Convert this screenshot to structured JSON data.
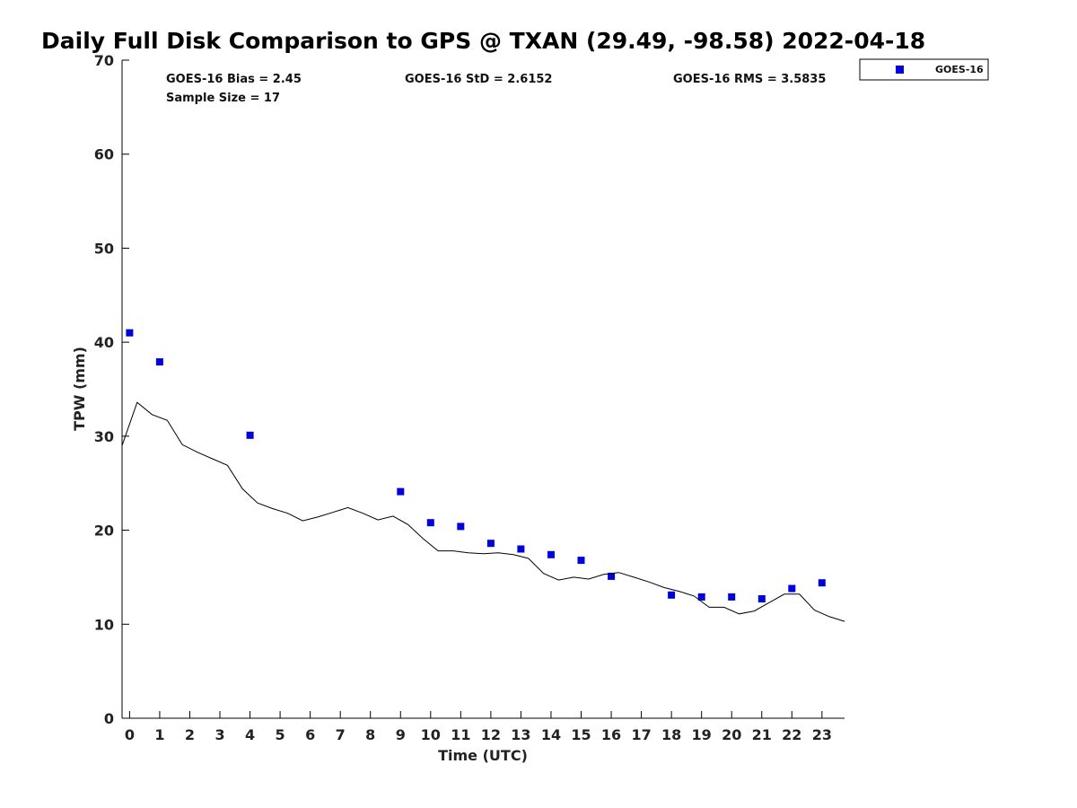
{
  "chart_data": {
    "type": "scatter",
    "title": "Daily Full Disk Comparison to GPS @ TXAN (29.49, -98.58) 2022-04-18",
    "xlabel": "Time (UTC)",
    "ylabel": "TPW (mm)",
    "xlim": [
      -0.25,
      23.75
    ],
    "ylim": [
      0,
      70
    ],
    "x_ticks": [
      0,
      1,
      2,
      3,
      4,
      5,
      6,
      7,
      8,
      9,
      10,
      11,
      12,
      13,
      14,
      15,
      16,
      17,
      18,
      19,
      20,
      21,
      22,
      23
    ],
    "y_ticks": [
      0,
      10,
      20,
      30,
      40,
      50,
      60,
      70
    ],
    "grid": false,
    "legend_position": "top-right-outside",
    "stats": {
      "bias": "GOES-16 Bias = 2.45",
      "sample_size": "Sample Size = 17",
      "std": "GOES-16 StD = 2.6152",
      "rms": "GOES-16 RMS = 3.5835"
    },
    "series": [
      {
        "name": "GOES-16",
        "type": "scatter",
        "marker": "square",
        "color": "#0000dd",
        "x": [
          0,
          1,
          4,
          9,
          10,
          11,
          12,
          13,
          14,
          15,
          16,
          18,
          19,
          20,
          21,
          22,
          23
        ],
        "y": [
          41.0,
          37.9,
          30.1,
          24.1,
          20.8,
          20.4,
          18.6,
          18.0,
          17.4,
          16.8,
          15.1,
          13.1,
          12.9,
          12.9,
          12.7,
          13.8,
          14.4
        ]
      },
      {
        "type": "line",
        "color": "#000000",
        "x": [
          -0.25,
          0.25,
          0.75,
          1.25,
          1.75,
          2.25,
          2.75,
          3.25,
          3.75,
          4.25,
          4.75,
          5.25,
          5.75,
          6.25,
          6.75,
          7.25,
          7.75,
          8.25,
          8.75,
          9.25,
          9.75,
          10.25,
          10.75,
          11.25,
          11.75,
          12.25,
          12.75,
          13.25,
          13.75,
          14.25,
          14.75,
          15.25,
          15.75,
          16.25,
          16.75,
          17.25,
          17.75,
          18.25,
          18.75,
          19.25,
          19.75,
          20.25,
          20.75,
          21.25,
          21.75,
          22.25,
          22.75,
          23.25,
          23.75
        ],
        "y": [
          29.0,
          33.6,
          32.3,
          31.7,
          29.1,
          28.3,
          27.6,
          26.9,
          24.4,
          22.9,
          22.3,
          21.8,
          21.0,
          21.4,
          21.9,
          22.4,
          21.8,
          21.1,
          21.5,
          20.6,
          19.1,
          17.8,
          17.8,
          17.6,
          17.5,
          17.6,
          17.4,
          17.0,
          15.4,
          14.7,
          15.0,
          14.8,
          15.3,
          15.5,
          15.0,
          14.5,
          13.9,
          13.5,
          13.0,
          11.8,
          11.8,
          11.1,
          11.4,
          12.3,
          13.2,
          13.2,
          11.5,
          10.8,
          10.3
        ]
      }
    ]
  }
}
